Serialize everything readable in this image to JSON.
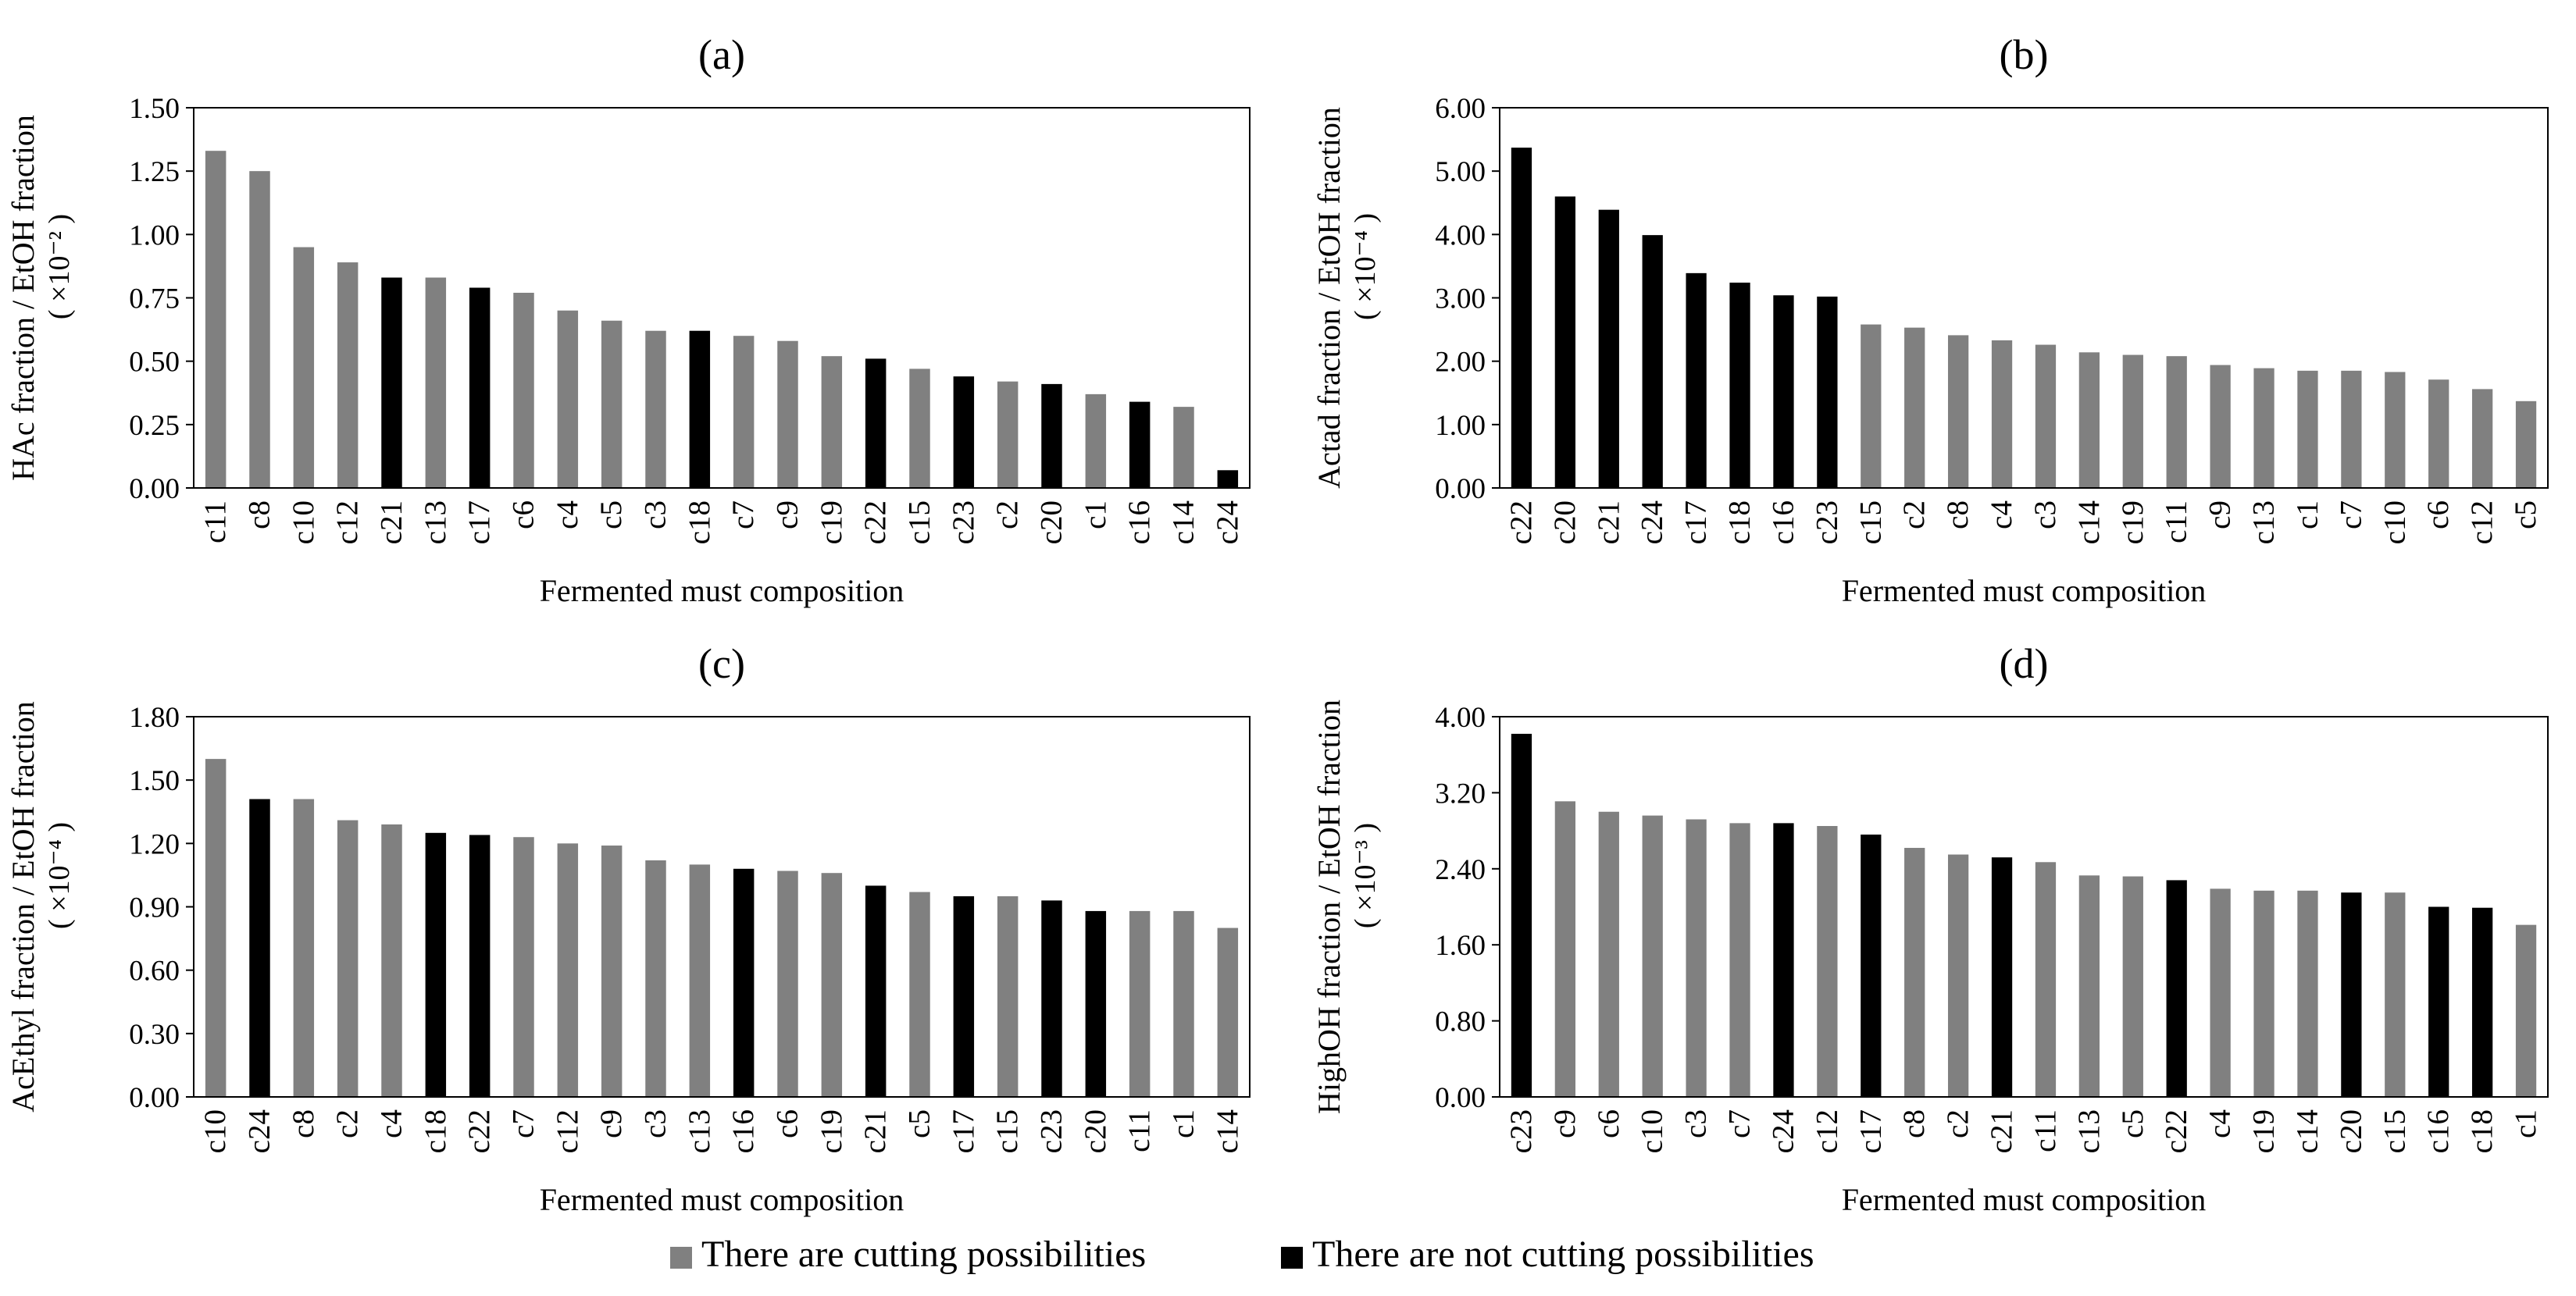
{
  "colors": {
    "cut": "#808080",
    "nocut": "#000000"
  },
  "legend": {
    "cut_label": "There are cutting possibilities",
    "nocut_label": "There are not cutting possibilities"
  },
  "chart_data": [
    {
      "id": "a",
      "type": "bar",
      "title": "(a)",
      "xlabel": "Fermented must composition",
      "ylabel": "HAc fraction / EtOH fraction",
      "yscale_label": "( ×10⁻² )",
      "ylim": [
        0,
        1.5
      ],
      "yticks": [
        "0.00",
        "0.25",
        "0.50",
        "0.75",
        "1.00",
        "1.25",
        "1.50"
      ],
      "categories": [
        "c11",
        "c8",
        "c10",
        "c12",
        "c21",
        "c13",
        "c17",
        "c6",
        "c4",
        "c5",
        "c3",
        "c18",
        "c7",
        "c9",
        "c19",
        "c22",
        "c15",
        "c23",
        "c2",
        "c20",
        "c1",
        "c16",
        "c14",
        "c24"
      ],
      "values": [
        1.33,
        1.25,
        0.95,
        0.89,
        0.83,
        0.83,
        0.79,
        0.77,
        0.7,
        0.66,
        0.62,
        0.62,
        0.6,
        0.58,
        0.52,
        0.51,
        0.47,
        0.44,
        0.42,
        0.41,
        0.37,
        0.34,
        0.32,
        0.07
      ],
      "cutting": [
        true,
        true,
        true,
        true,
        false,
        true,
        false,
        true,
        true,
        true,
        true,
        false,
        true,
        true,
        true,
        false,
        true,
        false,
        true,
        false,
        true,
        false,
        true,
        false
      ]
    },
    {
      "id": "b",
      "type": "bar",
      "title": "(b)",
      "xlabel": "Fermented must composition",
      "ylabel": "Actad fraction / EtOH fraction",
      "yscale_label": "( ×10⁻⁴ )",
      "ylim": [
        0,
        6
      ],
      "yticks": [
        "0.00",
        "1.00",
        "2.00",
        "3.00",
        "4.00",
        "5.00",
        "6.00"
      ],
      "categories": [
        "c22",
        "c20",
        "c21",
        "c24",
        "c17",
        "c18",
        "c16",
        "c23",
        "c15",
        "c2",
        "c8",
        "c4",
        "c3",
        "c14",
        "c19",
        "c11",
        "c9",
        "c13",
        "c1",
        "c7",
        "c10",
        "c6",
        "c12",
        "c5"
      ],
      "values": [
        5.37,
        4.6,
        4.39,
        3.99,
        3.39,
        3.24,
        3.04,
        3.02,
        2.58,
        2.53,
        2.41,
        2.33,
        2.26,
        2.14,
        2.1,
        2.08,
        1.94,
        1.89,
        1.85,
        1.85,
        1.83,
        1.71,
        1.56,
        1.37
      ],
      "cutting": [
        false,
        false,
        false,
        false,
        false,
        false,
        false,
        false,
        true,
        true,
        true,
        true,
        true,
        true,
        true,
        true,
        true,
        true,
        true,
        true,
        true,
        true,
        true,
        true
      ]
    },
    {
      "id": "c",
      "type": "bar",
      "title": "(c)",
      "xlabel": "Fermented must composition",
      "ylabel": "AcEthyl fraction / EtOH fraction",
      "yscale_label": "( ×10⁻⁴ )",
      "ylim": [
        0,
        1.8
      ],
      "yticks": [
        "0.00",
        "0.30",
        "0.60",
        "0.90",
        "1.20",
        "1.50",
        "1.80"
      ],
      "categories": [
        "c10",
        "c24",
        "c8",
        "c2",
        "c4",
        "c18",
        "c22",
        "c7",
        "c12",
        "c9",
        "c3",
        "c13",
        "c16",
        "c6",
        "c19",
        "c21",
        "c5",
        "c17",
        "c15",
        "c23",
        "c20",
        "c11",
        "c1",
        "c14"
      ],
      "values": [
        1.6,
        1.41,
        1.41,
        1.31,
        1.29,
        1.25,
        1.24,
        1.23,
        1.2,
        1.19,
        1.12,
        1.1,
        1.08,
        1.07,
        1.06,
        1.0,
        0.97,
        0.95,
        0.95,
        0.93,
        0.88,
        0.88,
        0.88,
        0.8
      ],
      "cutting": [
        true,
        false,
        true,
        true,
        true,
        false,
        false,
        true,
        true,
        true,
        true,
        true,
        false,
        true,
        true,
        false,
        true,
        false,
        true,
        false,
        false,
        true,
        true,
        true
      ]
    },
    {
      "id": "d",
      "type": "bar",
      "title": "(d)",
      "xlabel": "Fermented must composition",
      "ylabel": "HighOH fraction / EtOH fraction",
      "yscale_label": "( ×10⁻³ )",
      "ylim": [
        0,
        4
      ],
      "yticks": [
        "0.00",
        "0.80",
        "1.60",
        "2.40",
        "3.20",
        "4.00"
      ],
      "categories": [
        "c23",
        "c9",
        "c6",
        "c10",
        "c3",
        "c7",
        "c24",
        "c12",
        "c17",
        "c8",
        "c2",
        "c21",
        "c11",
        "c13",
        "c5",
        "c22",
        "c4",
        "c19",
        "c14",
        "c20",
        "c15",
        "c16",
        "c18",
        "c1"
      ],
      "values": [
        3.82,
        3.11,
        3.0,
        2.96,
        2.92,
        2.88,
        2.88,
        2.85,
        2.76,
        2.62,
        2.55,
        2.52,
        2.47,
        2.33,
        2.32,
        2.28,
        2.19,
        2.17,
        2.17,
        2.15,
        2.15,
        2.0,
        1.99,
        1.81
      ],
      "cutting": [
        false,
        true,
        true,
        true,
        true,
        true,
        false,
        true,
        false,
        true,
        true,
        false,
        true,
        true,
        true,
        false,
        true,
        true,
        true,
        false,
        true,
        false,
        false,
        true
      ]
    }
  ]
}
